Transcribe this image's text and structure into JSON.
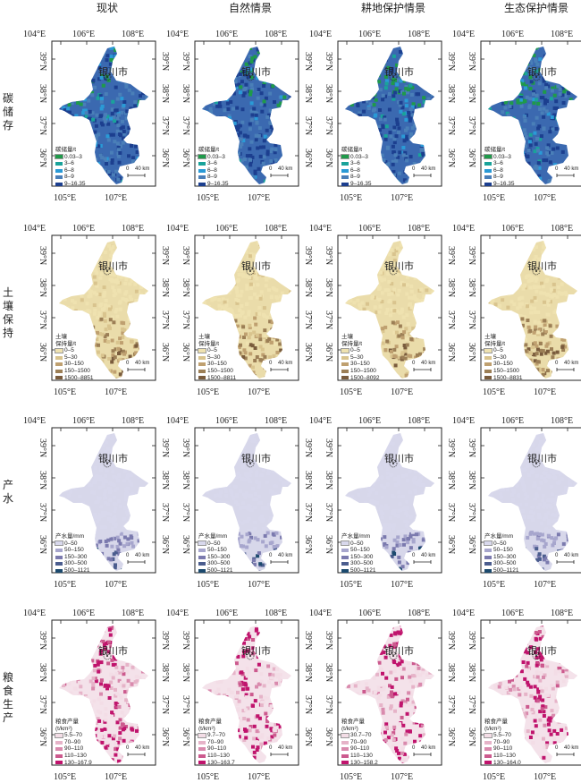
{
  "columns": [
    "现状",
    "自然情景",
    "耕地保护情景",
    "生态保护情景"
  ],
  "rows": [
    {
      "title": "碳储存",
      "theme": "carbon",
      "palette": [
        "#1f9a4a",
        "#1aa39a",
        "#2a9ad6",
        "#4a7fb8",
        "#1c3f8f"
      ],
      "base_color": "#3b69b0",
      "legend_title": [
        "碳储量/t"
      ],
      "legends": [
        [
          "0.03–3",
          "3–6",
          "6–8",
          "8–9",
          "9–16.35"
        ],
        [
          "0.03–3",
          "3–6",
          "6–8",
          "8–9",
          "9–16.35"
        ],
        [
          "0.03–3",
          "3–6",
          "6–8",
          "8–9",
          "9–16.35"
        ],
        [
          "0.03–3",
          "3–6",
          "6–8",
          "8–9",
          "9–16.35"
        ]
      ]
    },
    {
      "title": "土壤保持",
      "theme": "soil",
      "palette": [
        "#efe2b0",
        "#d9c48e",
        "#bfa070",
        "#9c7f56",
        "#7a5c3d"
      ],
      "base_color": "#eadcaa",
      "legend_title": [
        "土壤",
        "保持量/t"
      ],
      "legends": [
        [
          "0–5",
          "5–30",
          "30–150",
          "150–1500",
          "1500–8851"
        ],
        [
          "0–5",
          "5–30",
          "30–150",
          "150–1500",
          "1500–8811"
        ],
        [
          "0–5",
          "5–30",
          "30–150",
          "150–1500",
          "1500–8092"
        ],
        [
          "0–5",
          "5–30",
          "30–150",
          "150–1500",
          "1500–8831"
        ]
      ]
    },
    {
      "title": "产水",
      "theme": "water",
      "palette": [
        "#d8d8ec",
        "#a7a6cd",
        "#7b7aae",
        "#4b5d8e",
        "#1c4a6e"
      ],
      "base_color": "#d7d7ea",
      "legend_title": [
        "产水量/mm"
      ],
      "legends": [
        [
          "0–50",
          "50–150",
          "150–300",
          "300–500",
          "500–1121"
        ],
        [
          "0–50",
          "50–150",
          "150–300",
          "300–500",
          "500–1121"
        ],
        [
          "0–50",
          "50–150",
          "150–300",
          "300–500",
          "500–1121"
        ],
        [
          "0–50",
          "50–150",
          "150–300",
          "300–500",
          "500–1121"
        ]
      ]
    },
    {
      "title": "粮食生产",
      "theme": "grain",
      "palette": [
        "#f3dde6",
        "#e6b3c8",
        "#d98aad",
        "#cc5a8e",
        "#c0146d"
      ],
      "base_color": "#f4e2ea",
      "legend_title": [
        "粮食产量",
        "(t/km²)"
      ],
      "legends": [
        [
          "5.5–70",
          "70–90",
          "90–110",
          "110–130",
          "130–167.9"
        ],
        [
          "9.7–70",
          "70–90",
          "90–110",
          "110–130",
          "130–163.7"
        ],
        [
          "30.7–70",
          "70–90",
          "90–110",
          "110–130",
          "130–158.2"
        ],
        [
          "5.5–70",
          "70–90",
          "90–110",
          "110–130",
          "130–164.0"
        ]
      ]
    }
  ],
  "axes": {
    "top_ticks": [
      "104°E",
      "106°E",
      "108°E"
    ],
    "bottom_ticks": [
      "105°E",
      "107°E"
    ],
    "lat_ticks": [
      "39°N",
      "38°N",
      "37°N",
      "36°N"
    ]
  },
  "city_label": "银川市",
  "scale_bar": {
    "zero": "0",
    "distance": "40 km"
  }
}
